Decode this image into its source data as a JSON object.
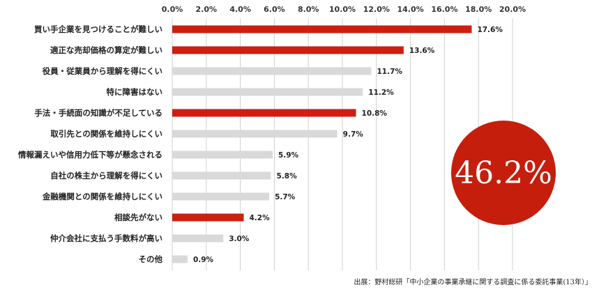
{
  "chart_data": {
    "type": "bar",
    "orientation": "horizontal",
    "categories": [
      "買い手企業を見つけることが難しい",
      "適正な売却価格の算定が難しい",
      "役員・従業員から理解を得にくい",
      "特に障害はない",
      "手法・手続面の知識が不足している",
      "取引先との関係を維持しにくい",
      "情報漏えいや信用力低下等が懸念される",
      "自社の株主から理解を得にくい",
      "金融機関との関係を維持しにくい",
      "相談先がない",
      "仲介会社に支払う手数料が高い",
      "その他"
    ],
    "values": [
      17.6,
      13.6,
      11.7,
      11.2,
      10.8,
      9.7,
      5.9,
      5.8,
      5.7,
      4.2,
      3.0,
      0.9
    ],
    "value_labels": [
      "17.6%",
      "13.6%",
      "11.7%",
      "11.2%",
      "10.8%",
      "9.7%",
      "5.9%",
      "5.8%",
      "5.7%",
      "4.2%",
      "3.0%",
      "0.9%"
    ],
    "highlighted": [
      true,
      true,
      false,
      false,
      true,
      false,
      false,
      false,
      false,
      true,
      false,
      false
    ],
    "xlim": [
      0,
      20
    ],
    "ticks": [
      0,
      2,
      4,
      6,
      8,
      10,
      12,
      14,
      16,
      18,
      20
    ],
    "tick_labels": [
      "0.0%",
      "2.0%",
      "4.0%",
      "6.0%",
      "8.0%",
      "10.0%",
      "12.0%",
      "14.0%",
      "16.0%",
      "18.0%",
      "20.0%"
    ],
    "axis_position": "top",
    "grid": true,
    "title": "",
    "xlabel": "",
    "ylabel": ""
  },
  "callout": {
    "text": "46.2%"
  },
  "source_note": "出展：野村総研「中小企業の事業承継に関する調査に係る委託事業(13年）」",
  "colors": {
    "highlight": "#cc1f10",
    "normal": "#d9d9d9",
    "callout": "#c61e0c"
  }
}
